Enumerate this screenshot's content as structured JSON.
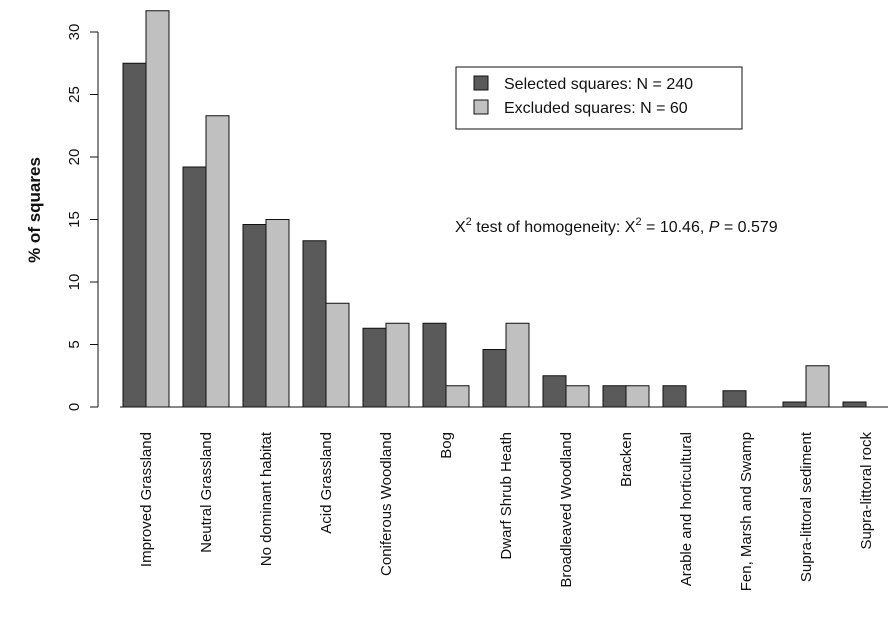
{
  "chart_data": {
    "type": "bar",
    "ylabel": "% of squares",
    "ylim": [
      0,
      31.7
    ],
    "yticks": [
      0,
      5,
      10,
      15,
      20,
      25,
      30
    ],
    "categories": [
      "Improved Grassland",
      "Neutral Grassland",
      "No dominant habitat",
      "Acid Grassland",
      "Coniferous Woodland",
      "Bog",
      "Dwarf Shrub Heath",
      "Broadleaved Woodland",
      "Bracken",
      "Arable and horticultural",
      "Fen, Marsh and Swamp",
      "Supra-littoral sediment",
      "Supra-littoral rock"
    ],
    "series": [
      {
        "name": "Selected squares: N = 240",
        "color": "#5a5a5a",
        "values": [
          27.5,
          19.2,
          14.6,
          13.3,
          6.3,
          6.7,
          4.6,
          2.5,
          1.7,
          1.7,
          1.3,
          0.4,
          0.4
        ]
      },
      {
        "name": "Excluded squares: N = 60",
        "color": "#c0c0c0",
        "values": [
          31.7,
          23.3,
          15.0,
          8.3,
          6.7,
          1.7,
          6.7,
          1.7,
          1.7,
          0,
          0,
          3.3,
          0
        ]
      }
    ],
    "legend_position": "top-right",
    "annotation": {
      "main": "X",
      "sup1": "2",
      "mid": " test of homogeneity: X",
      "sup2": "2",
      "eq": " = 10.46, ",
      "p": "P",
      "pval": " = 0.579"
    }
  }
}
